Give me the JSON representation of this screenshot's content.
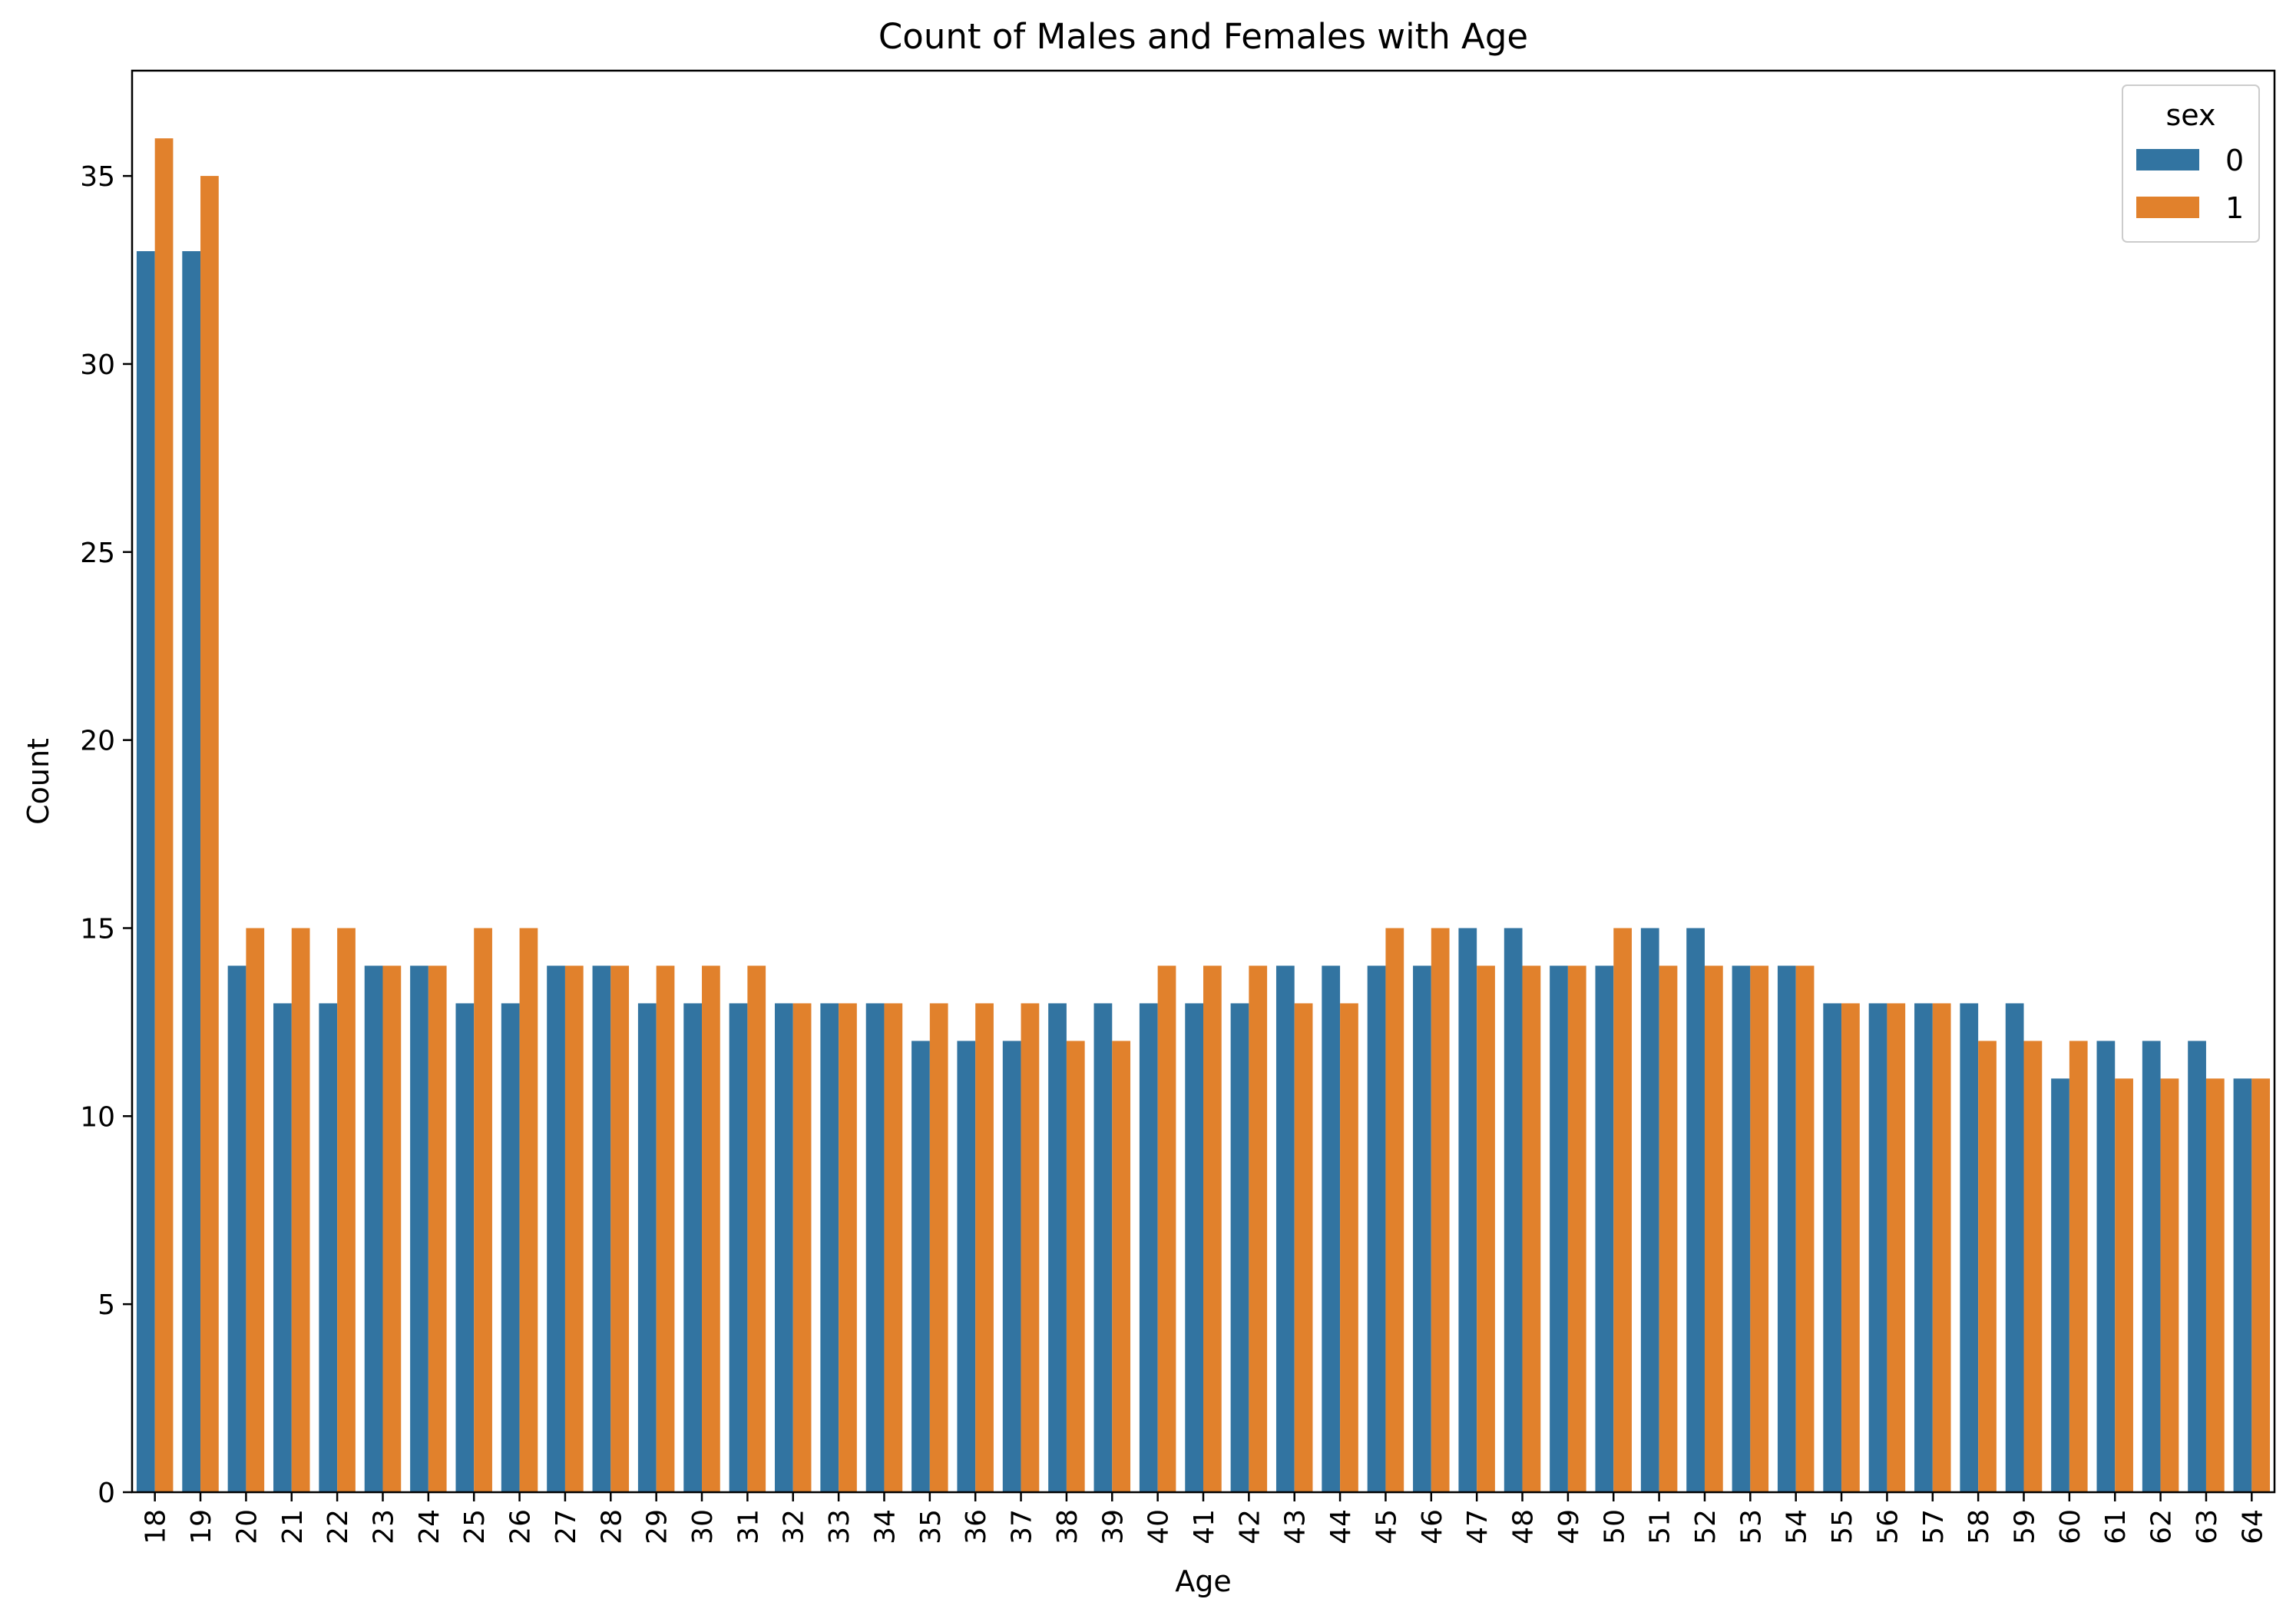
{
  "chart_data": {
    "type": "bar",
    "title": "Count of Males and Females with Age",
    "xlabel": "Age",
    "ylabel": "Count",
    "ylim": [
      0,
      37.8
    ],
    "yticks": [
      0,
      5,
      10,
      15,
      20,
      25,
      30,
      35
    ],
    "grid": false,
    "legend": {
      "title": "sex",
      "placement": "top-right"
    },
    "categories": [
      "18",
      "19",
      "20",
      "21",
      "22",
      "23",
      "24",
      "25",
      "26",
      "27",
      "28",
      "29",
      "30",
      "31",
      "32",
      "33",
      "34",
      "35",
      "36",
      "37",
      "38",
      "39",
      "40",
      "41",
      "42",
      "43",
      "44",
      "45",
      "46",
      "47",
      "48",
      "49",
      "50",
      "51",
      "52",
      "53",
      "54",
      "55",
      "56",
      "57",
      "58",
      "59",
      "60",
      "61",
      "62",
      "63",
      "64"
    ],
    "series": [
      {
        "name": "0",
        "color": "#3274a1",
        "values": [
          33,
          33,
          14,
          13,
          13,
          14,
          14,
          13,
          13,
          14,
          14,
          13,
          13,
          13,
          13,
          13,
          13,
          12,
          12,
          12,
          13,
          13,
          13,
          13,
          13,
          14,
          14,
          14,
          14,
          15,
          15,
          14,
          14,
          15,
          15,
          14,
          14,
          13,
          13,
          13,
          13,
          13,
          11,
          12,
          12,
          12,
          11
        ]
      },
      {
        "name": "1",
        "color": "#e1812c",
        "values": [
          36,
          35,
          15,
          15,
          15,
          14,
          14,
          15,
          15,
          14,
          14,
          14,
          14,
          14,
          13,
          13,
          13,
          13,
          13,
          13,
          12,
          12,
          14,
          14,
          14,
          13,
          13,
          15,
          15,
          14,
          14,
          14,
          15,
          14,
          14,
          14,
          14,
          13,
          13,
          13,
          12,
          12,
          12,
          11,
          11,
          11,
          11
        ]
      }
    ]
  }
}
